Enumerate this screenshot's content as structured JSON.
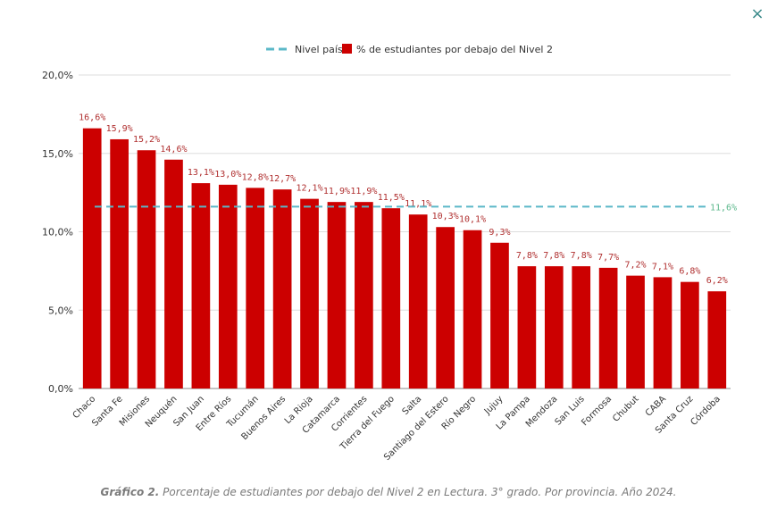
{
  "close_icon": "×",
  "legend": {
    "line_label": "Nivel país",
    "bar_label": "% de estudiantes por debajo del Nivel 2"
  },
  "caption": {
    "prefix": "Gráfico 2.",
    "text": " Porcentaje de estudiantes por debajo del Nivel 2 en Lectura. 3° grado. Por provincia. Año 2024."
  },
  "chart_data": {
    "type": "bar",
    "categories": [
      "Chaco",
      "Santa Fe",
      "Misiones",
      "Neuquén",
      "San Juan",
      "Entre Ríos",
      "Tucumán",
      "Buenos Aires",
      "La Rioja",
      "Catamarca",
      "Corrientes",
      "Tierra del Fuego",
      "Salta",
      "Santiago del Estero",
      "Río Negro",
      "Jujuy",
      "La Pampa",
      "Mendoza",
      "San Luis",
      "Formosa",
      "Chubut",
      "CABA",
      "Santa Cruz",
      "Córdoba"
    ],
    "series": [
      {
        "name": "% de estudiantes por debajo del Nivel 2",
        "values": [
          16.6,
          15.9,
          15.2,
          14.6,
          13.1,
          13.0,
          12.8,
          12.7,
          12.1,
          11.9,
          11.9,
          11.5,
          11.1,
          10.3,
          10.1,
          9.3,
          7.8,
          7.8,
          7.8,
          7.7,
          7.2,
          7.1,
          6.8,
          6.2
        ],
        "labels": [
          "16,6%",
          "15,9%",
          "15,2%",
          "14,6%",
          "13,1%",
          "13,0%",
          "12,8%",
          "12,7%",
          "12,1%",
          "11,9%",
          "11,9%",
          "11,5%",
          "11,1%",
          "10,3%",
          "10,1%",
          "9,3%",
          "7,8%",
          "7,8%",
          "7,8%",
          "7,7%",
          "7,2%",
          "7,1%",
          "6,8%",
          "6,2%"
        ]
      }
    ],
    "reference_line": {
      "name": "Nivel país",
      "value": 11.6,
      "label": "11,6%"
    },
    "yticks": [
      0,
      5,
      10,
      15,
      20
    ],
    "ytick_labels": [
      "0,0%",
      "5,0%",
      "10,0%",
      "15,0%",
      "20,0%"
    ],
    "ylim": [
      0,
      20
    ],
    "grid": true,
    "legend_position": "top-center",
    "colors": {
      "bar": "#cc0000",
      "bar_label": "#b03030",
      "line": "#5bb8c8",
      "line_label": "#5cb88c",
      "axis_text": "#333333",
      "grid": "#dddddd"
    }
  }
}
